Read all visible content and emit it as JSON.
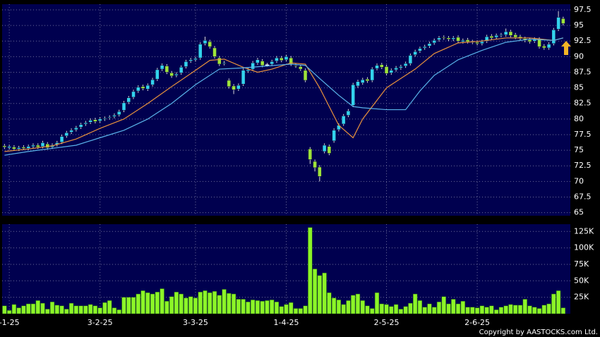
{
  "chart_data": [
    {
      "type": "candlestick",
      "xlim": [
        -0.5,
        118.5
      ],
      "ylim": [
        64.5,
        98.4
      ],
      "yticks": [
        65,
        67.5,
        70,
        72.5,
        75,
        77.5,
        80,
        82.5,
        85,
        87.5,
        90,
        92.5,
        95,
        97.5
      ],
      "grid": true,
      "up_color": "#33d3ee",
      "down_color": "#9ee43a",
      "open": [
        75.7,
        75.4,
        75.5,
        75.2,
        75.5,
        75.3,
        75.6,
        75.8,
        75.6,
        76.0,
        75.5,
        75.9,
        76.3,
        77.3,
        77.9,
        78.3,
        78.7,
        79.2,
        79.5,
        79.9,
        79.7,
        80.0,
        80.2,
        80.4,
        80.7,
        81.4,
        82.7,
        83.5,
        84.5,
        85.2,
        84.8,
        85.5,
        86.4,
        88.0,
        88.5,
        87.4,
        87.0,
        87.4,
        88.4,
        89.3,
        89.5,
        89.8,
        92.1,
        92.4,
        91.4,
        89.8,
        88.9,
        86.2,
        85.3,
        84.8,
        85.6,
        87.7,
        88.0,
        89.0,
        89.3,
        88.7,
        88.8,
        89.3,
        89.8,
        89.5,
        89.8,
        88.6,
        88.4,
        87.8,
        75.2,
        73.2,
        72.3,
        74.8,
        75.6,
        76.5,
        78.3,
        79.2,
        80.6,
        82.2,
        85.3,
        85.8,
        86.4,
        86.2,
        88.1,
        88.7,
        88.4,
        87.4,
        87.9,
        88.2,
        88.5,
        88.9,
        90.3,
        90.9,
        91.4,
        91.7,
        92.2,
        92.7,
        93.1,
        93.0,
        92.8,
        93.1,
        92.4,
        92.7,
        92.4,
        92.3,
        92.1,
        92.5,
        93.3,
        93.1,
        93.4,
        93.5,
        94.0,
        93.5,
        93.2,
        92.9,
        92.7,
        92.5,
        92.8,
        91.7,
        91.4,
        92.1,
        94.4,
        96.1
      ],
      "high": [
        76.0,
        75.9,
        75.8,
        75.7,
        75.8,
        75.9,
        76.1,
        76.1,
        76.5,
        76.3,
        76.1,
        76.5,
        77.5,
        78.1,
        78.5,
        78.9,
        79.4,
        79.7,
        80.1,
        80.2,
        80.3,
        80.4,
        80.6,
        80.9,
        81.5,
        82.9,
        83.7,
        84.7,
        85.4,
        85.5,
        85.7,
        86.6,
        88.2,
        88.9,
        88.8,
        87.7,
        87.5,
        88.6,
        89.5,
        89.8,
        90.0,
        92.3,
        93.2,
        92.7,
        91.7,
        90.1,
        89.3,
        86.5,
        85.6,
        85.7,
        88.1,
        88.2,
        89.3,
        89.8,
        89.6,
        89.0,
        89.5,
        90.1,
        90.1,
        90.3,
        90.1,
        88.9,
        88.7,
        88.1,
        75.5,
        73.5,
        72.6,
        76.1,
        75.9,
        78.5,
        79.3,
        80.8,
        81.6,
        85.8,
        86.3,
        86.6,
        86.7,
        88.3,
        88.9,
        89.0,
        88.7,
        88.1,
        88.5,
        88.7,
        89.2,
        90.5,
        91.1,
        91.6,
        91.9,
        92.4,
        92.9,
        93.3,
        93.4,
        93.3,
        93.3,
        93.4,
        92.9,
        93.0,
        92.7,
        92.6,
        92.7,
        93.5,
        93.6,
        93.7,
        93.8,
        94.5,
        94.3,
        93.8,
        93.5,
        93.2,
        93.0,
        93.1,
        93.1,
        92.0,
        92.3,
        94.6,
        97.3,
        96.4
      ],
      "low": [
        75.2,
        75.1,
        74.9,
        74.9,
        75.0,
        75.0,
        75.3,
        75.2,
        75.3,
        75.1,
        75.2,
        75.6,
        76.0,
        77.0,
        77.6,
        78.0,
        78.4,
        78.9,
        79.2,
        79.3,
        79.4,
        79.7,
        79.9,
        80.1,
        80.4,
        81.1,
        82.4,
        83.2,
        84.2,
        84.6,
        84.5,
        85.2,
        86.1,
        87.7,
        87.2,
        86.6,
        86.7,
        87.1,
        88.1,
        89.0,
        89.2,
        89.5,
        91.8,
        91.3,
        89.7,
        88.5,
        88.6,
        84.9,
        84.0,
        84.5,
        85.3,
        87.4,
        87.7,
        88.7,
        88.3,
        88.4,
        88.5,
        89.0,
        89.1,
        89.2,
        88.5,
        88.2,
        87.7,
        85.9,
        72.8,
        71.6,
        70.0,
        74.5,
        74.2,
        76.2,
        78.0,
        78.9,
        80.3,
        81.9,
        85.0,
        85.5,
        85.8,
        85.9,
        87.8,
        88.0,
        87.0,
        87.1,
        87.6,
        87.9,
        88.2,
        88.6,
        90.0,
        90.6,
        91.1,
        91.4,
        91.9,
        92.4,
        92.7,
        92.5,
        92.5,
        92.2,
        92.1,
        92.1,
        92.0,
        91.8,
        91.8,
        92.2,
        92.7,
        92.8,
        93.1,
        93.2,
        93.1,
        92.8,
        92.6,
        92.3,
        92.1,
        92.2,
        91.3,
        91.1,
        91.1,
        91.8,
        94.1,
        95.0
      ],
      "close": [
        75.5,
        75.6,
        75.2,
        75.4,
        75.3,
        75.6,
        75.8,
        75.5,
        76.2,
        75.4,
        75.8,
        76.2,
        77.2,
        77.8,
        78.2,
        78.6,
        79.1,
        79.4,
        79.8,
        79.6,
        80.0,
        80.1,
        80.3,
        80.6,
        81.2,
        82.6,
        83.4,
        84.4,
        85.1,
        84.9,
        85.4,
        86.3,
        87.9,
        88.6,
        87.5,
        86.9,
        87.2,
        88.3,
        89.2,
        89.5,
        89.7,
        92.0,
        92.6,
        91.6,
        90.0,
        88.8,
        89.0,
        85.2,
        84.7,
        85.4,
        87.8,
        87.9,
        89.0,
        89.5,
        88.6,
        88.7,
        89.2,
        89.8,
        89.4,
        90.0,
        88.8,
        88.5,
        88.0,
        86.2,
        73.5,
        72.2,
        70.8,
        75.8,
        74.5,
        78.2,
        79.0,
        80.5,
        81.3,
        85.5,
        86.0,
        86.3,
        86.1,
        88.0,
        88.6,
        88.3,
        87.3,
        87.8,
        88.2,
        88.4,
        88.9,
        90.2,
        90.8,
        91.3,
        91.6,
        92.1,
        92.6,
        93.0,
        93.0,
        92.8,
        93.0,
        92.5,
        92.6,
        92.4,
        92.3,
        92.1,
        92.4,
        93.2,
        93.0,
        93.4,
        93.5,
        94.0,
        93.4,
        93.1,
        92.9,
        92.6,
        92.4,
        92.8,
        91.6,
        91.4,
        92.0,
        94.3,
        96.3,
        95.3
      ],
      "series": [
        {
          "type": "line",
          "color": "#e8923c",
          "x": [
            0,
            5,
            10,
            15,
            20,
            25,
            30,
            35,
            40,
            43,
            46,
            50,
            53,
            56,
            60,
            63,
            66,
            70,
            73,
            75,
            78,
            80,
            83,
            86,
            90,
            95,
            100,
            105,
            110,
            115,
            117
          ],
          "values": [
            74.8,
            75.2,
            75.7,
            76.8,
            78.5,
            80,
            82.5,
            85.2,
            87.8,
            89.4,
            89.6,
            88.3,
            87.5,
            88,
            89,
            88.8,
            85,
            79,
            77,
            80,
            83,
            85,
            86.5,
            88,
            90.5,
            92.2,
            92.5,
            93,
            93,
            92.6,
            93
          ]
        },
        {
          "type": "line",
          "color": "#5ab4ea",
          "x": [
            0,
            5,
            10,
            15,
            20,
            25,
            30,
            35,
            40,
            45,
            50,
            55,
            60,
            63,
            66,
            70,
            73,
            75,
            80,
            84,
            87,
            90,
            95,
            100,
            105,
            110,
            115,
            117
          ],
          "values": [
            74.2,
            74.8,
            75.3,
            75.8,
            77,
            78.2,
            80,
            82.5,
            85.5,
            88,
            88.2,
            88.5,
            88.8,
            88.6,
            86.5,
            83.8,
            82,
            81.8,
            81.5,
            81.5,
            84.5,
            87,
            89.5,
            91,
            92.3,
            92.8,
            92.6,
            93
          ]
        }
      ]
    },
    {
      "type": "bar",
      "xlim": [
        -0.5,
        118.5
      ],
      "ylim": [
        0,
        136000
      ],
      "grid": true,
      "color": "#8cf528",
      "yticks": [
        {
          "value": 25000,
          "label": "25K"
        },
        {
          "value": 50000,
          "label": "50K"
        },
        {
          "value": 75000,
          "label": "75K"
        },
        {
          "value": 100000,
          "label": "100K"
        },
        {
          "value": 125000,
          "label": "125K"
        }
      ],
      "xticks": [
        {
          "value": 1,
          "label": "-1-25"
        },
        {
          "value": 20,
          "label": "3-2-25"
        },
        {
          "value": 40,
          "label": "3-3-25"
        },
        {
          "value": 59,
          "label": "1-4-25"
        },
        {
          "value": 80,
          "label": "2-5-25"
        },
        {
          "value": 99,
          "label": "2-6-25"
        }
      ],
      "values": [
        12000,
        5000,
        14000,
        9000,
        12000,
        15000,
        15000,
        20000,
        16000,
        7000,
        18000,
        13000,
        12000,
        7000,
        16000,
        12000,
        12000,
        12000,
        14000,
        12000,
        9000,
        17000,
        20000,
        9000,
        6000,
        25000,
        25000,
        25000,
        30000,
        35000,
        32000,
        30000,
        33000,
        38000,
        19000,
        26000,
        33000,
        30000,
        24000,
        26000,
        24000,
        33000,
        35000,
        32000,
        34000,
        28000,
        37000,
        31000,
        30000,
        22000,
        22000,
        18000,
        21000,
        20000,
        19000,
        20000,
        21000,
        18000,
        11000,
        14000,
        17000,
        8000,
        8000,
        12000,
        131000,
        68000,
        58000,
        62000,
        32000,
        24000,
        21000,
        14000,
        20000,
        28000,
        30000,
        20000,
        12000,
        8000,
        32000,
        15000,
        14000,
        11000,
        14000,
        7000,
        11000,
        16000,
        30000,
        20000,
        10000,
        15000,
        10000,
        18000,
        26000,
        15000,
        22000,
        15000,
        19000,
        10000,
        10000,
        9000,
        12000,
        10000,
        12000,
        6000,
        10000,
        12000,
        14000,
        13000,
        13000,
        22000,
        12000,
        10000,
        8000,
        13000,
        15000,
        30000,
        35000,
        9000
      ]
    }
  ],
  "copyright": "Copyright by AASTOCKS.com Ltd."
}
